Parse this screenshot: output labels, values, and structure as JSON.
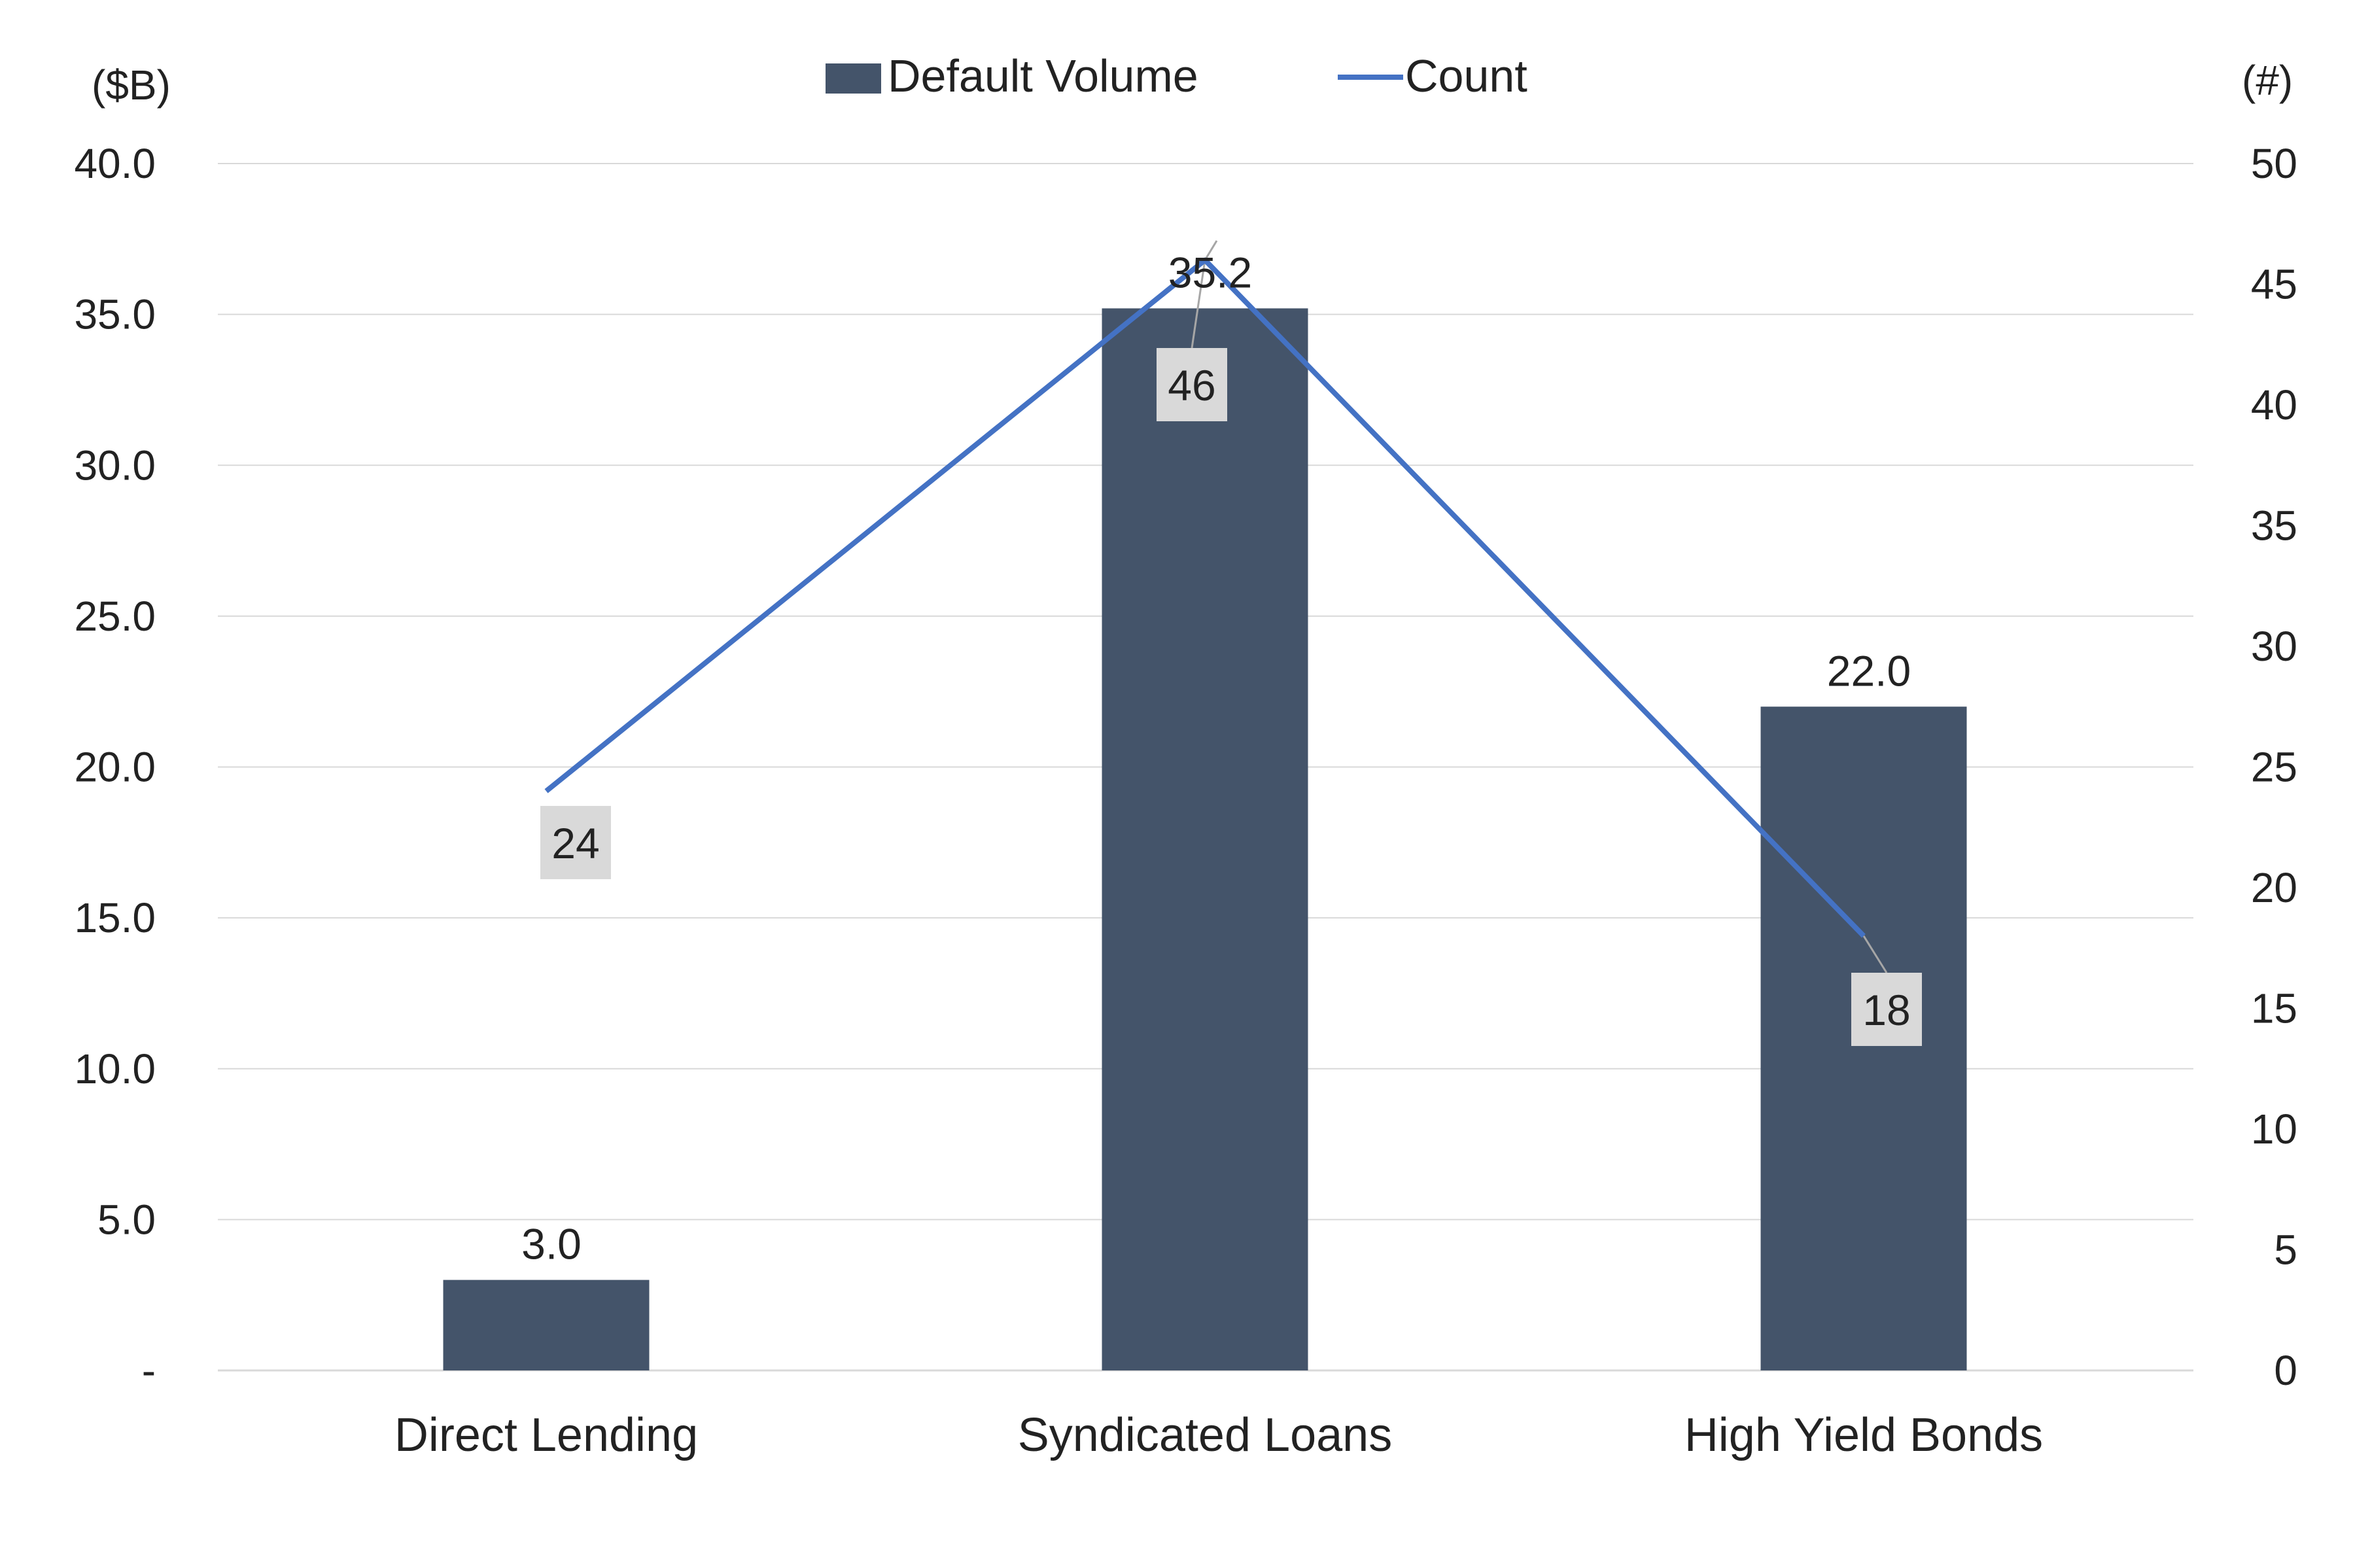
{
  "chart_data": {
    "type": "bar",
    "categories": [
      "Direct Lending",
      "Syndicated Loans",
      "High Yield Bonds"
    ],
    "series": [
      {
        "name": "Default Volume",
        "type": "bar",
        "axis": "left",
        "values": [
          3.0,
          35.2,
          22.0
        ],
        "labels": [
          "3.0",
          "35.2",
          "22.0"
        ],
        "color": "#44546a"
      },
      {
        "name": "Count",
        "type": "line",
        "axis": "right",
        "values": [
          24,
          46,
          18
        ],
        "labels": [
          "24",
          "46",
          "18"
        ],
        "color": "#4472c4"
      }
    ],
    "y_left": {
      "unit": "($B)",
      "ylim": [
        0,
        40
      ],
      "ticks": [
        0,
        5,
        10,
        15,
        20,
        25,
        30,
        35,
        40
      ],
      "tick_labels": [
        "-",
        "5.0",
        "10.0",
        "15.0",
        "20.0",
        "25.0",
        "30.0",
        "35.0",
        "40.0"
      ]
    },
    "y_right": {
      "unit": "(#)",
      "ylim": [
        0,
        50
      ],
      "ticks": [
        0,
        5,
        10,
        15,
        20,
        25,
        30,
        35,
        40,
        45,
        50
      ],
      "tick_labels": [
        "0",
        "5",
        "10",
        "15",
        "20",
        "25",
        "30",
        "35",
        "40",
        "45",
        "50"
      ]
    },
    "legend": {
      "placement": "top-center",
      "entries": [
        "Default Volume",
        "Count"
      ]
    },
    "grid": true,
    "colors": {
      "gridline": "#d9d9d9",
      "label_box": "#d9d9d9",
      "leader_line": "#a6a6a6",
      "text": "#222222"
    }
  }
}
